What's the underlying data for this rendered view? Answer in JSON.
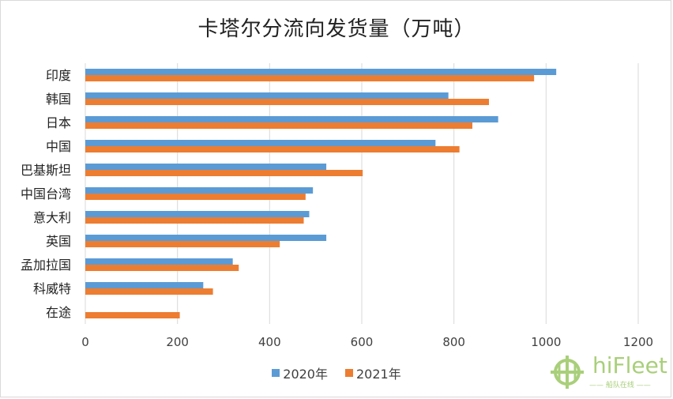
{
  "chart_data": {
    "type": "bar",
    "orientation": "horizontal",
    "title": "卡塔尔分流向发货量（万吨）",
    "categories": [
      "印度",
      "韩国",
      "日本",
      "中国",
      "巴基斯坦",
      "中国台湾",
      "意大利",
      "英国",
      "孟加拉国",
      "科威特",
      "在途"
    ],
    "series": [
      {
        "name": "2020年",
        "color": "#5b9bd5",
        "values": [
          1022,
          788,
          896,
          760,
          523,
          494,
          486,
          523,
          320,
          256,
          null
        ]
      },
      {
        "name": "2021年",
        "color": "#ed7d31",
        "values": [
          974,
          876,
          840,
          812,
          602,
          478,
          474,
          422,
          333,
          277,
          205
        ]
      }
    ],
    "xlim": [
      0,
      1200
    ],
    "x_ticks": [
      "0",
      "200",
      "400",
      "600",
      "800",
      "1000",
      "1200"
    ],
    "grid": "vertical",
    "legend_position": "bottom"
  },
  "watermark": {
    "brand": "hiFleet",
    "tagline": "船队在线"
  }
}
